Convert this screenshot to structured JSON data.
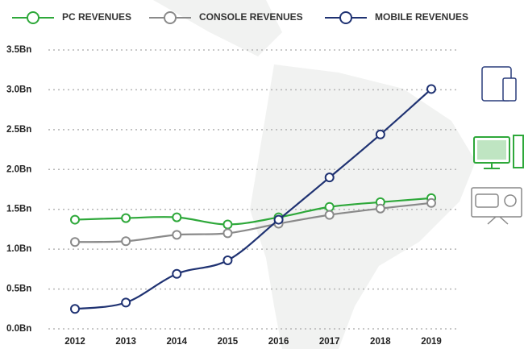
{
  "chart_data": {
    "type": "line",
    "categories": [
      "2012",
      "2013",
      "2014",
      "2015",
      "2016",
      "2017",
      "2018",
      "2019"
    ],
    "series": [
      {
        "name": "PC REVENUES",
        "color": "#2ea83a",
        "values": [
          1.37,
          1.39,
          1.4,
          1.31,
          1.4,
          1.53,
          1.59,
          1.64
        ]
      },
      {
        "name": "CONSOLE REVENUES",
        "color": "#8a8a8a",
        "values": [
          1.09,
          1.1,
          1.18,
          1.2,
          1.32,
          1.43,
          1.51,
          1.58
        ]
      },
      {
        "name": "MOBILE REVENUES",
        "color": "#1f3272",
        "values": [
          0.25,
          0.33,
          0.69,
          0.86,
          1.37,
          1.9,
          2.44,
          3.01
        ]
      }
    ],
    "ylim": [
      0,
      3.5
    ],
    "yticks": [
      {
        "value": 0,
        "label": "0.0Bn"
      },
      {
        "value": 0.5,
        "label": "0.5Bn"
      },
      {
        "value": 1,
        "label": "1.0Bn"
      },
      {
        "value": 1.5,
        "label": "1.5Bn"
      },
      {
        "value": 2,
        "label": "2.0Bn"
      },
      {
        "value": 2.5,
        "label": "2.5Bn"
      },
      {
        "value": 3,
        "label": "3.0Bn"
      },
      {
        "value": 3.5,
        "label": "3.5Bn"
      }
    ],
    "grid": true,
    "legend": "top"
  }
}
